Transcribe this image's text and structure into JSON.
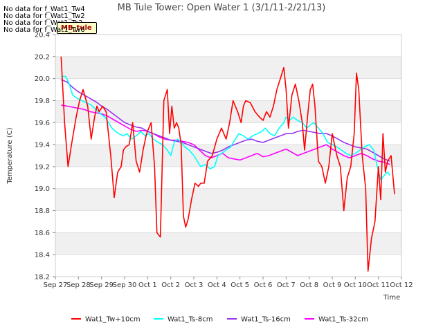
{
  "no_data_messages": [
    "No data for f_Wat1_Tw4",
    "No data for f_Wat1_Tw2",
    "No data for f_Wat1_Ts2",
    "No data for f_Wat1_Tw6"
  ],
  "badge_label": "MB_tule",
  "chart_data": {
    "type": "line",
    "title": "MB Tule Tower: Open Water 1 (3/1/11-2/21/13)",
    "xlabel": "Time",
    "ylabel": "Temperature (C)",
    "xlim": [
      0,
      15
    ],
    "ylim": [
      18.2,
      20.4
    ],
    "x_ticks": [
      0,
      1,
      2,
      3,
      4,
      5,
      6,
      7,
      8,
      9,
      10,
      11,
      12,
      13,
      14,
      15
    ],
    "x_tick_labels": [
      "Sep 27",
      "Sep 28",
      "Sep 29",
      "Sep 30",
      "Oct 1",
      "Oct 2",
      "Oct 3",
      "Oct 4",
      "Oct 5",
      "Oct 6",
      "Oct 7",
      "Oct 8",
      "Oct 9",
      "Oct 10",
      "Oct 11",
      "Oct 12"
    ],
    "y_ticks": [
      18.2,
      18.4,
      18.6,
      18.8,
      19.0,
      19.2,
      19.4,
      19.6,
      19.8,
      20.0,
      20.2,
      20.4
    ],
    "y_tick_labels": [
      "18.2",
      "18.4",
      "18.6",
      "18.8",
      "19.0",
      "19.2",
      "19.4",
      "19.6",
      "19.8",
      "20.0",
      "20.2",
      "20.4"
    ],
    "grid": true,
    "legend_position": "bottom",
    "series": [
      {
        "name": "Wat1_Tw+10cm",
        "color": "#ff0000",
        "x": [
          0.25,
          0.4,
          0.55,
          0.7,
          0.9,
          1.05,
          1.2,
          1.4,
          1.55,
          1.7,
          1.8,
          1.9,
          2.05,
          2.2,
          2.4,
          2.55,
          2.7,
          2.85,
          2.95,
          3.05,
          3.2,
          3.35,
          3.5,
          3.65,
          3.8,
          3.95,
          4.05,
          4.15,
          4.3,
          4.4,
          4.55,
          4.7,
          4.85,
          4.95,
          5.05,
          5.15,
          5.25,
          5.35,
          5.45,
          5.55,
          5.65,
          5.75,
          5.9,
          6.05,
          6.2,
          6.3,
          6.45,
          6.6,
          6.8,
          7.0,
          7.2,
          7.4,
          7.55,
          7.7,
          7.9,
          8.05,
          8.15,
          8.25,
          8.45,
          8.65,
          8.85,
          9.0,
          9.15,
          9.3,
          9.45,
          9.6,
          9.75,
          9.9,
          10.0,
          10.1,
          10.25,
          10.4,
          10.55,
          10.7,
          10.8,
          10.95,
          11.05,
          11.15,
          11.25,
          11.4,
          11.55,
          11.7,
          11.85,
          12.0,
          12.1,
          12.2,
          12.35,
          12.5,
          12.65,
          12.8,
          12.95,
          13.05,
          13.15,
          13.3,
          13.45,
          13.55,
          13.7,
          13.85,
          14.0,
          14.1,
          14.2,
          14.3,
          14.4,
          14.55,
          14.7
        ],
        "y": [
          20.2,
          19.6,
          19.2,
          19.4,
          19.65,
          19.8,
          19.9,
          19.75,
          19.45,
          19.65,
          19.75,
          19.7,
          19.75,
          19.7,
          19.3,
          18.92,
          19.15,
          19.2,
          19.35,
          19.38,
          19.4,
          19.6,
          19.25,
          19.15,
          19.35,
          19.5,
          19.55,
          19.6,
          19.2,
          18.6,
          18.56,
          19.8,
          19.9,
          19.5,
          19.75,
          19.55,
          19.6,
          19.55,
          19.4,
          18.75,
          18.65,
          18.72,
          18.9,
          19.05,
          19.02,
          19.05,
          19.05,
          19.25,
          19.3,
          19.45,
          19.55,
          19.45,
          19.6,
          19.8,
          19.7,
          19.6,
          19.75,
          19.8,
          19.78,
          19.7,
          19.65,
          19.62,
          19.7,
          19.65,
          19.75,
          19.9,
          20.0,
          20.1,
          19.9,
          19.55,
          19.85,
          19.95,
          19.8,
          19.6,
          19.35,
          19.7,
          19.9,
          19.95,
          19.75,
          19.25,
          19.2,
          19.05,
          19.2,
          19.5,
          19.4,
          19.3,
          19.2,
          18.8,
          19.1,
          19.2,
          19.5,
          20.05,
          19.9,
          19.3,
          19.0,
          18.25,
          18.55,
          18.7,
          19.2,
          18.9,
          19.5,
          19.15,
          19.25,
          19.3,
          18.95
        ]
      },
      {
        "name": "Wat1_Ts-8cm",
        "color": "#00ffff",
        "x": [
          0.25,
          0.45,
          0.6,
          0.75,
          0.95,
          1.15,
          1.35,
          1.55,
          1.75,
          1.95,
          2.15,
          2.3,
          2.45,
          2.6,
          2.75,
          2.95,
          3.1,
          3.3,
          3.5,
          3.7,
          3.9,
          4.05,
          4.25,
          4.45,
          4.65,
          4.85,
          5.0,
          5.15,
          5.3,
          5.45,
          5.6,
          5.8,
          6.0,
          6.15,
          6.3,
          6.5,
          6.7,
          6.9,
          7.05,
          7.2,
          7.4,
          7.6,
          7.8,
          7.95,
          8.15,
          8.35,
          8.55,
          8.75,
          8.95,
          9.1,
          9.3,
          9.5,
          9.7,
          9.9,
          10.0,
          10.15,
          10.3,
          10.5,
          10.7,
          10.9,
          11.05,
          11.2,
          11.4,
          11.6,
          11.8,
          12.0,
          12.2,
          12.4,
          12.6,
          12.8,
          13.0,
          13.2,
          13.4,
          13.6,
          13.8,
          13.95,
          14.1,
          14.25,
          14.4,
          14.5
        ],
        "y": [
          20.02,
          20.02,
          19.95,
          19.85,
          19.82,
          19.8,
          19.78,
          19.76,
          19.72,
          19.68,
          19.65,
          19.6,
          19.55,
          19.52,
          19.5,
          19.48,
          19.5,
          19.45,
          19.48,
          19.52,
          19.48,
          19.5,
          19.45,
          19.42,
          19.4,
          19.35,
          19.3,
          19.42,
          19.45,
          19.42,
          19.38,
          19.35,
          19.3,
          19.25,
          19.2,
          19.22,
          19.18,
          19.2,
          19.3,
          19.32,
          19.35,
          19.38,
          19.45,
          19.5,
          19.48,
          19.45,
          19.48,
          19.5,
          19.52,
          19.55,
          19.5,
          19.48,
          19.55,
          19.6,
          19.65,
          19.62,
          19.65,
          19.62,
          19.6,
          19.55,
          19.58,
          19.6,
          19.55,
          19.5,
          19.42,
          19.4,
          19.38,
          19.35,
          19.32,
          19.3,
          19.32,
          19.35,
          19.38,
          19.4,
          19.35,
          19.2,
          19.08,
          19.12,
          19.15,
          19.12
        ]
      },
      {
        "name": "Wat1_Ts-16cm",
        "color": "#9933ee",
        "x": [
          0.25,
          0.5,
          0.75,
          1.0,
          1.25,
          1.5,
          1.75,
          2.0,
          2.25,
          2.5,
          2.75,
          3.0,
          3.25,
          3.5,
          3.75,
          4.0,
          4.25,
          4.5,
          4.75,
          5.0,
          5.25,
          5.5,
          5.75,
          6.0,
          6.25,
          6.5,
          6.75,
          7.0,
          7.25,
          7.5,
          7.75,
          8.0,
          8.25,
          8.5,
          8.75,
          9.0,
          9.25,
          9.5,
          9.75,
          10.0,
          10.25,
          10.5,
          10.75,
          11.0,
          11.25,
          11.5,
          11.75,
          12.0,
          12.25,
          12.5,
          12.75,
          13.0,
          13.25,
          13.5,
          13.75,
          14.0,
          14.25,
          14.5
        ],
        "y": [
          19.99,
          19.97,
          19.92,
          19.88,
          19.85,
          19.82,
          19.79,
          19.75,
          19.72,
          19.68,
          19.64,
          19.6,
          19.58,
          19.56,
          19.55,
          19.52,
          19.5,
          19.48,
          19.46,
          19.44,
          19.43,
          19.42,
          19.4,
          19.38,
          19.36,
          19.34,
          19.32,
          19.33,
          19.35,
          19.38,
          19.4,
          19.42,
          19.44,
          19.45,
          19.43,
          19.42,
          19.44,
          19.46,
          19.48,
          19.5,
          19.5,
          19.52,
          19.53,
          19.52,
          19.51,
          19.5,
          19.5,
          19.48,
          19.45,
          19.42,
          19.4,
          19.38,
          19.37,
          19.36,
          19.33,
          19.3,
          19.27,
          19.25
        ]
      },
      {
        "name": "Wat1_Ts-32cm",
        "color": "#ff00ff",
        "x": [
          0.25,
          0.5,
          0.75,
          1.0,
          1.25,
          1.5,
          1.75,
          2.0,
          2.25,
          2.5,
          2.75,
          3.0,
          3.25,
          3.5,
          3.75,
          4.0,
          4.25,
          4.5,
          4.75,
          5.0,
          5.25,
          5.5,
          5.75,
          6.0,
          6.25,
          6.5,
          6.75,
          7.0,
          7.25,
          7.5,
          7.75,
          8.0,
          8.25,
          8.5,
          8.75,
          9.0,
          9.25,
          9.5,
          9.75,
          10.0,
          10.25,
          10.5,
          10.75,
          11.0,
          11.25,
          11.5,
          11.75,
          12.0,
          12.25,
          12.5,
          12.75,
          13.0,
          13.25,
          13.5,
          13.75,
          14.0,
          14.25,
          14.5
        ],
        "y": [
          19.76,
          19.75,
          19.74,
          19.73,
          19.72,
          19.7,
          19.69,
          19.68,
          19.66,
          19.63,
          19.6,
          19.57,
          19.54,
          19.52,
          19.53,
          19.52,
          19.5,
          19.47,
          19.45,
          19.44,
          19.44,
          19.43,
          19.42,
          19.4,
          19.35,
          19.3,
          19.28,
          19.3,
          19.32,
          19.28,
          19.27,
          19.26,
          19.28,
          19.3,
          19.32,
          19.29,
          19.3,
          19.32,
          19.34,
          19.36,
          19.33,
          19.3,
          19.32,
          19.34,
          19.36,
          19.38,
          19.4,
          19.36,
          19.33,
          19.3,
          19.28,
          19.3,
          19.32,
          19.3,
          19.27,
          19.25,
          19.24,
          19.22
        ]
      }
    ]
  }
}
